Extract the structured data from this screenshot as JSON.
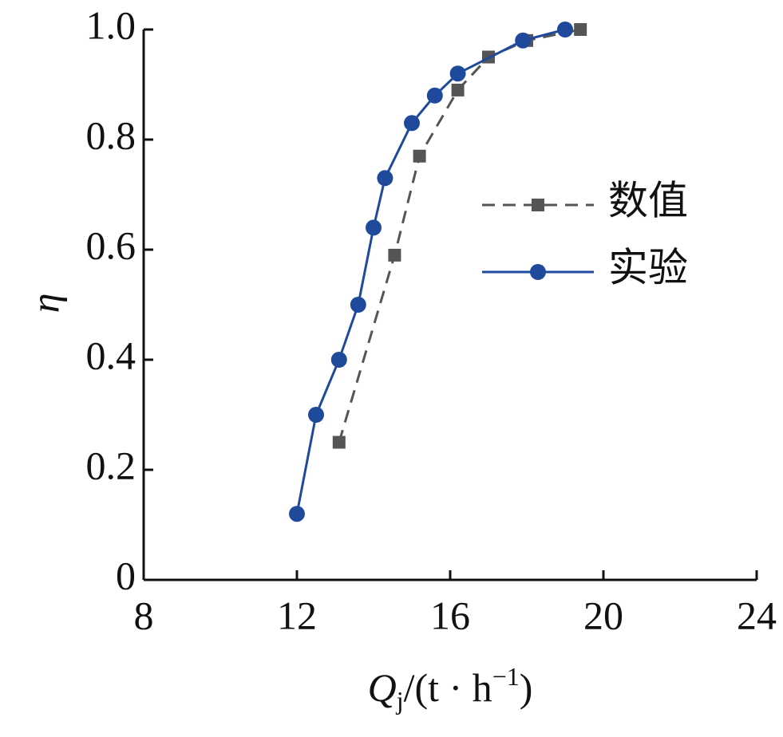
{
  "chart_data": {
    "type": "line",
    "x_label": [
      "Q",
      "j",
      "/(t · h",
      "−1",
      ")"
    ],
    "y_label": "η",
    "xlim": [
      8,
      24
    ],
    "xticks": [
      8,
      12,
      16,
      20,
      24
    ],
    "ylim": [
      0,
      1
    ],
    "yticks": [
      0,
      0.2,
      0.4,
      0.6,
      0.8,
      {
        "value": 1,
        "label": "1.0"
      }
    ],
    "legend": "right",
    "series": [
      {
        "name": "数值",
        "color": "#555555",
        "dash": true,
        "marker": "square",
        "x": [
          13.1,
          14.55,
          15.2,
          16.2,
          17.0,
          18.0,
          19.4
        ],
        "values": [
          0.25,
          0.59,
          0.77,
          0.89,
          0.95,
          0.98,
          1.0
        ]
      },
      {
        "name": "实验",
        "color": "#1f4a9c",
        "dash": false,
        "marker": "circle",
        "x": [
          12.0,
          12.5,
          13.1,
          13.6,
          14.0,
          14.3,
          15.0,
          15.6,
          16.2,
          17.9,
          19.0
        ],
        "values": [
          0.12,
          0.3,
          0.4,
          0.5,
          0.64,
          0.73,
          0.83,
          0.88,
          0.92,
          0.98,
          1.0
        ]
      }
    ]
  }
}
